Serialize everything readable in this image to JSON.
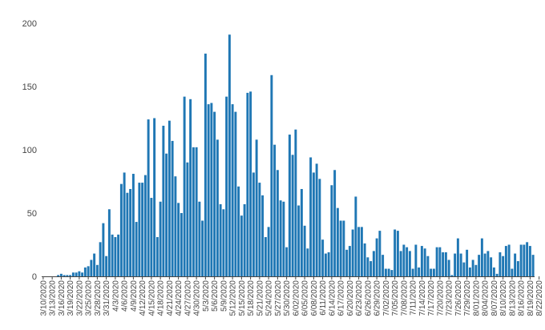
{
  "chart_data": {
    "type": "bar",
    "title": "",
    "xlabel": "",
    "ylabel": "",
    "ylim": [
      0,
      200
    ],
    "yticks": [
      0,
      50,
      100,
      150,
      200
    ],
    "grid": false,
    "bar_color": "#1f77b4",
    "start_date": "2020-03-10",
    "x_tick_labels": [
      "3/10/2020",
      "3/13/2020",
      "3/16/2020",
      "3/19/2020",
      "3/22/2020",
      "3/25/2020",
      "3/28/2020",
      "3/31/2020",
      "4/3/2020",
      "4/6/2020",
      "4/9/2020",
      "4/12/2020",
      "4/15/2020",
      "4/18/2020",
      "4/21/2020",
      "4/24/2020",
      "4/27/2020",
      "4/30/2020",
      "5/3/2020",
      "5/6/2020",
      "5/9/2020",
      "5/12/2020",
      "5/15/2020",
      "5/18/2020",
      "5/21/2020",
      "5/24/2020",
      "5/27/2020",
      "5/30/2020",
      "6/02/2020",
      "6/05/2020",
      "6/08/2020",
      "6/11/2020",
      "6/14/2020",
      "6/17/2020",
      "6/20/2020",
      "6/23/2020",
      "6/26/2020",
      "6/29/2020",
      "7/02/2020",
      "7/05/2020",
      "7/08/2020",
      "7/11/2020",
      "7/14/2020",
      "7/17/2020",
      "7/20/2020",
      "7/23/2020",
      "7/26/2020",
      "7/29/2020",
      "8/01/2020",
      "8/04/2020",
      "8/07/2020",
      "8/10/2020",
      "8/13/2020",
      "8/16/2020",
      "8/19/2020",
      "8/22/2020"
    ],
    "values": [
      0,
      0,
      0,
      0,
      0,
      1,
      2,
      1,
      1,
      1,
      3,
      3,
      4,
      3,
      7,
      8,
      13,
      18,
      9,
      27,
      42,
      16,
      53,
      33,
      31,
      33,
      73,
      82,
      66,
      69,
      81,
      43,
      74,
      74,
      80,
      124,
      62,
      125,
      31,
      59,
      119,
      97,
      123,
      107,
      79,
      58,
      50,
      142,
      90,
      140,
      102,
      102,
      59,
      44,
      176,
      136,
      137,
      130,
      108,
      57,
      53,
      142,
      191,
      136,
      130,
      71,
      48,
      57,
      145,
      146,
      82,
      108,
      74,
      64,
      31,
      39,
      159,
      104,
      84,
      60,
      59,
      23,
      112,
      96,
      116,
      56,
      69,
      40,
      22,
      94,
      82,
      89,
      77,
      29,
      18,
      19,
      72,
      84,
      54,
      44,
      44,
      21,
      24,
      37,
      63,
      39,
      39,
      26,
      15,
      12,
      20,
      30,
      36,
      17,
      6,
      6,
      5,
      37,
      36,
      20,
      25,
      23,
      20,
      6,
      25,
      7,
      24,
      22,
      16,
      6,
      6,
      23,
      23,
      19,
      19,
      13,
      1,
      18,
      30,
      18,
      11,
      21,
      7,
      13,
      9,
      17,
      30,
      18,
      20,
      15,
      7,
      2,
      19,
      16,
      24,
      25,
      6,
      18,
      12,
      25,
      25,
      27,
      24,
      17
    ]
  }
}
